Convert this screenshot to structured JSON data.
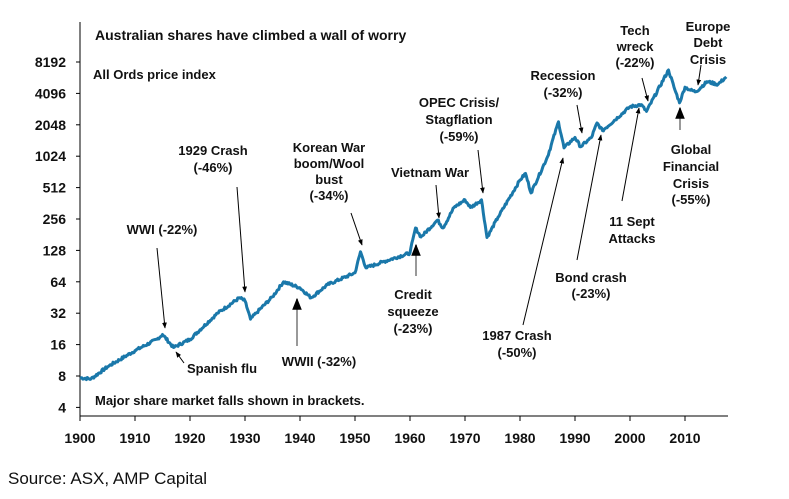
{
  "chart_data": {
    "type": "line",
    "title": "Australian shares have climbed a wall of worry",
    "subtitle": "All Ords price index",
    "note": "Major share market falls shown in brackets.",
    "source": "Source: ASX, AMP Capital",
    "y_scale": "log2",
    "ylim": [
      4,
      8192
    ],
    "xlim": [
      1900,
      2017
    ],
    "x_ticks": [
      "1900",
      "1910",
      "1920",
      "1930",
      "1940",
      "1950",
      "1960",
      "1970",
      "1980",
      "1990",
      "2000",
      "2010"
    ],
    "y_ticks": [
      "8192",
      "4096",
      "2048",
      "1024",
      "512",
      "256",
      "128",
      "64",
      "32",
      "16",
      "8",
      "4"
    ],
    "grid": false,
    "line_color": "#1a78aa",
    "series": [
      {
        "x": [
          1900,
          1902,
          1905,
          1910,
          1914,
          1915,
          1917,
          1920,
          1925,
          1929,
          1930,
          1931,
          1932,
          1935,
          1937,
          1940,
          1942,
          1945,
          1950,
          1951,
          1952,
          1955,
          1960,
          1961,
          1962,
          1965,
          1966,
          1968,
          1970,
          1971,
          1973,
          1974,
          1976,
          1980,
          1981,
          1982,
          1985,
          1987,
          1988,
          1990,
          1991,
          1993,
          1994,
          1995,
          2000,
          2002,
          2003,
          2007,
          2008,
          2009,
          2010,
          2011,
          2012,
          2014,
          2016,
          2017.5
        ],
        "values": [
          7.7,
          7.5,
          9.8,
          14,
          18,
          20,
          15,
          18,
          32,
          45,
          42,
          28,
          32,
          46,
          64,
          56,
          45,
          60,
          78,
          124,
          87,
          99,
          121,
          210,
          172,
          250,
          210,
          330,
          390,
          330,
          390,
          170,
          266,
          605,
          700,
          455,
          1010,
          2190,
          1230,
          1550,
          1260,
          1550,
          2130,
          1800,
          3050,
          3200,
          2750,
          6860,
          4700,
          3330,
          4700,
          4400,
          4250,
          5300,
          5000,
          5900
        ]
      }
    ],
    "annotations": [
      {
        "lines": [
          "WWI (-22%)"
        ],
        "arrow_color": "#000000"
      },
      {
        "lines": [
          "Spanish flu"
        ],
        "arrow_color": "#000000"
      },
      {
        "lines": [
          "1929 Crash",
          "(-46%)"
        ],
        "arrow_color": "#000000"
      },
      {
        "lines": [
          "WWII (-32%)"
        ],
        "arrow_color": "#999999"
      },
      {
        "lines": [
          "Korean War",
          "boom/Wool",
          "bust",
          "(-34%)"
        ],
        "arrow_color": "#000000"
      },
      {
        "lines": [
          "Vietnam War"
        ],
        "arrow_color": "#000000"
      },
      {
        "lines": [
          "Credit",
          "squeeze",
          "(-23%)"
        ],
        "arrow_color": "#999999"
      },
      {
        "lines": [
          "OPEC Crisis/",
          "Stagflation",
          "(-59%)"
        ],
        "arrow_color": "#000000"
      },
      {
        "lines": [
          "1987 Crash",
          "(-50%)"
        ],
        "arrow_color": "#000000"
      },
      {
        "lines": [
          "Recession",
          "(-32%)"
        ],
        "arrow_color": "#000000"
      },
      {
        "lines": [
          "Bond crash",
          "(-23%)"
        ],
        "arrow_color": "#000000"
      },
      {
        "lines": [
          "11 Sept",
          "Attacks"
        ],
        "arrow_color": "#000000"
      },
      {
        "lines": [
          "Tech",
          "wreck",
          "(-22%)"
        ],
        "arrow_color": "#000000"
      },
      {
        "lines": [
          "Global",
          "Financial",
          "Crisis",
          "(-55%)"
        ],
        "arrow_color": "#999999"
      },
      {
        "lines": [
          "Europe",
          "Debt",
          "Crisis"
        ],
        "arrow_color": "#000000"
      }
    ]
  }
}
